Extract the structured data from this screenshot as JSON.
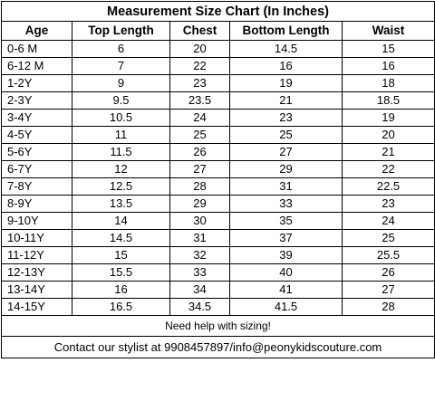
{
  "title": "Measurement Size Chart (In Inches)",
  "columns": [
    "Age",
    "Top Length",
    "Chest",
    "Bottom Length",
    "Waist"
  ],
  "rows": [
    [
      "0-6 M",
      "6",
      "20",
      "14.5",
      "15"
    ],
    [
      "6-12 M",
      "7",
      "22",
      "16",
      "16"
    ],
    [
      "1-2Y",
      "9",
      "23",
      "19",
      "18"
    ],
    [
      "2-3Y",
      "9.5",
      "23.5",
      "21",
      "18.5"
    ],
    [
      "3-4Y",
      "10.5",
      "24",
      "23",
      "19"
    ],
    [
      "4-5Y",
      "11",
      "25",
      "25",
      "20"
    ],
    [
      "5-6Y",
      "11.5",
      "26",
      "27",
      "21"
    ],
    [
      "6-7Y",
      "12",
      "27",
      "29",
      "22"
    ],
    [
      "7-8Y",
      "12.5",
      "28",
      "31",
      "22.5"
    ],
    [
      "8-9Y",
      "13.5",
      "29",
      "33",
      "23"
    ],
    [
      "9-10Y",
      "14",
      "30",
      "35",
      "24"
    ],
    [
      "10-11Y",
      "14.5",
      "31",
      "37",
      "25"
    ],
    [
      "11-12Y",
      "15",
      "32",
      "39",
      "25.5"
    ],
    [
      "12-13Y",
      "15.5",
      "33",
      "40",
      "26"
    ],
    [
      "13-14Y",
      "16",
      "34",
      "41",
      "27"
    ],
    [
      "14-15Y",
      "16.5",
      "34.5",
      "41.5",
      "28"
    ]
  ],
  "help_text": "Need help with sizing!",
  "contact_text": "Contact our stylist at 9908457897/info@peonykidscouture.com"
}
